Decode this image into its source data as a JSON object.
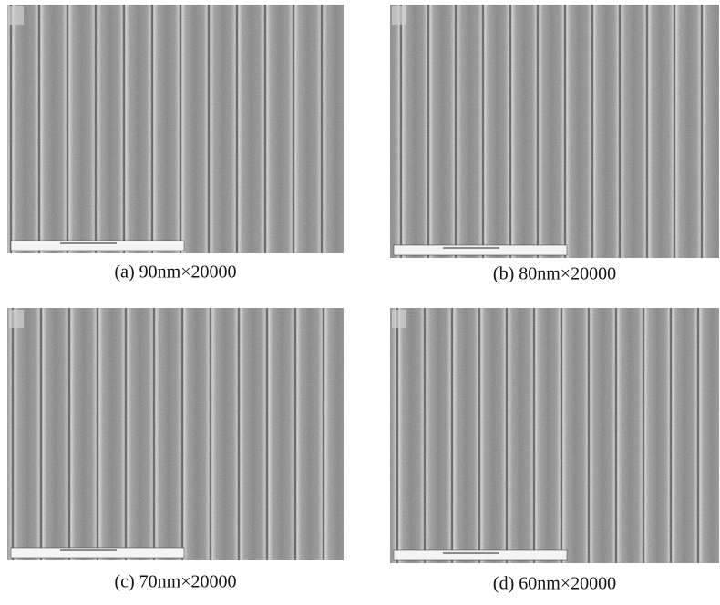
{
  "panels": [
    {
      "caption": "(a) 90nm×20000"
    },
    {
      "caption": "(b) 80nm×20000"
    },
    {
      "caption": "(c) 70nm×20000"
    },
    {
      "caption": "(d) 60nm×20000"
    }
  ]
}
